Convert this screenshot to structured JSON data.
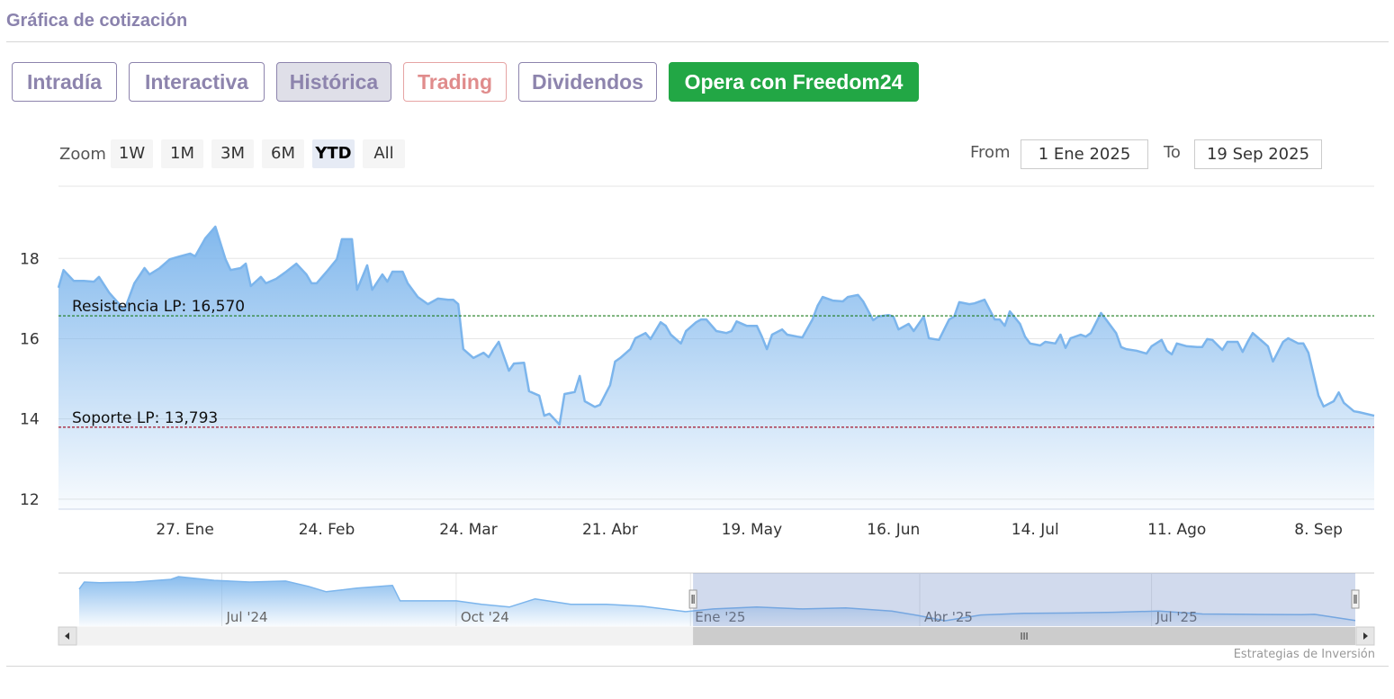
{
  "header": {
    "title": "Gráfica de cotización"
  },
  "tabs": [
    {
      "label": "Intradía"
    },
    {
      "label": "Interactiva"
    },
    {
      "label": "Histórica",
      "active": true
    },
    {
      "label": "Trading"
    },
    {
      "label": "Dividendos"
    },
    {
      "label": "Opera con Freedom24"
    }
  ],
  "zoom": {
    "label": "Zoom",
    "buttons": [
      {
        "label": "1W"
      },
      {
        "label": "1M"
      },
      {
        "label": "3M"
      },
      {
        "label": "6M"
      },
      {
        "label": "YTD",
        "active": true
      },
      {
        "label": "All"
      }
    ]
  },
  "range": {
    "from_label": "From",
    "from": "1 Ene 2025",
    "to_label": "To",
    "to": "19 Sep 2025"
  },
  "chart_data": {
    "type": "area",
    "color": "#7cb5ec",
    "x": [
      "2025-01-02",
      "2025-01-03",
      "2025-01-05",
      "2025-01-07",
      "2025-01-09",
      "2025-01-10",
      "2025-01-12",
      "2025-01-14",
      "2025-01-15",
      "2025-01-17",
      "2025-01-19",
      "2025-01-20",
      "2025-01-22",
      "2025-01-24",
      "2025-01-26",
      "2025-01-28",
      "2025-01-29",
      "2025-01-31",
      "2025-02-02",
      "2025-02-04",
      "2025-02-05",
      "2025-02-07",
      "2025-02-08",
      "2025-02-09",
      "2025-02-11",
      "2025-02-12",
      "2025-02-14",
      "2025-02-16",
      "2025-02-18",
      "2025-02-20",
      "2025-02-21",
      "2025-02-22",
      "2025-02-24",
      "2025-02-26",
      "2025-02-27",
      "2025-03-01",
      "2025-03-02",
      "2025-03-04",
      "2025-03-05",
      "2025-03-07",
      "2025-03-08",
      "2025-03-09",
      "2025-03-11",
      "2025-03-12",
      "2025-03-14",
      "2025-03-16",
      "2025-03-18",
      "2025-03-20",
      "2025-03-21",
      "2025-03-22",
      "2025-03-23",
      "2025-03-25",
      "2025-03-27",
      "2025-03-28",
      "2025-03-29",
      "2025-03-30",
      "2025-04-01",
      "2025-04-02",
      "2025-04-04",
      "2025-04-05",
      "2025-04-07",
      "2025-04-08",
      "2025-04-09",
      "2025-04-11",
      "2025-04-12",
      "2025-04-14",
      "2025-04-15",
      "2025-04-16",
      "2025-04-18",
      "2025-04-19",
      "2025-04-21",
      "2025-04-22",
      "2025-04-23",
      "2025-04-25",
      "2025-04-26",
      "2025-04-28",
      "2025-04-29",
      "2025-05-01",
      "2025-05-02",
      "2025-05-03",
      "2025-05-05",
      "2025-05-06",
      "2025-05-08",
      "2025-05-09",
      "2025-05-10",
      "2025-05-12",
      "2025-05-14",
      "2025-05-15",
      "2025-05-16",
      "2025-05-18",
      "2025-05-20",
      "2025-05-21",
      "2025-05-22",
      "2025-05-23",
      "2025-05-25",
      "2025-05-26",
      "2025-05-28",
      "2025-05-29",
      "2025-05-31",
      "2025-06-01",
      "2025-06-02",
      "2025-06-04",
      "2025-06-06",
      "2025-06-07",
      "2025-06-09",
      "2025-06-10",
      "2025-06-12",
      "2025-06-13",
      "2025-06-15",
      "2025-06-16",
      "2025-06-17",
      "2025-06-19",
      "2025-06-20",
      "2025-06-22",
      "2025-06-23",
      "2025-06-25",
      "2025-06-27",
      "2025-06-28",
      "2025-06-29",
      "2025-07-01",
      "2025-07-02",
      "2025-07-04",
      "2025-07-06",
      "2025-07-07",
      "2025-07-08",
      "2025-07-09",
      "2025-07-11",
      "2025-07-12",
      "2025-07-13",
      "2025-07-15",
      "2025-07-16",
      "2025-07-18",
      "2025-07-19",
      "2025-07-20",
      "2025-07-21",
      "2025-07-23",
      "2025-07-24",
      "2025-07-25",
      "2025-07-27",
      "2025-07-28",
      "2025-07-30",
      "2025-07-31",
      "2025-08-01",
      "2025-08-03",
      "2025-08-05",
      "2025-08-06",
      "2025-08-08",
      "2025-08-09",
      "2025-08-10",
      "2025-08-11",
      "2025-08-13",
      "2025-08-15",
      "2025-08-16",
      "2025-08-17",
      "2025-08-18",
      "2025-08-20",
      "2025-08-21",
      "2025-08-23",
      "2025-08-24",
      "2025-08-25",
      "2025-08-26",
      "2025-08-28",
      "2025-08-29",
      "2025-08-30",
      "2025-09-01",
      "2025-09-02",
      "2025-09-04",
      "2025-09-05",
      "2025-09-06",
      "2025-09-08",
      "2025-09-09",
      "2025-09-11",
      "2025-09-12",
      "2025-09-13",
      "2025-09-15",
      "2025-09-16",
      "2025-09-19"
    ],
    "values": [
      17.27,
      17.71,
      17.44,
      17.44,
      17.42,
      17.54,
      17.15,
      16.86,
      16.7,
      17.38,
      17.76,
      17.6,
      17.76,
      17.98,
      18.05,
      18.12,
      18.05,
      18.5,
      18.79,
      17.98,
      17.71,
      17.76,
      17.87,
      17.31,
      17.54,
      17.38,
      17.49,
      17.67,
      17.87,
      17.6,
      17.38,
      17.38,
      17.67,
      17.98,
      18.48,
      18.48,
      17.22,
      17.83,
      17.22,
      17.6,
      17.42,
      17.67,
      17.67,
      17.38,
      17.04,
      16.86,
      17.0,
      16.97,
      16.97,
      16.86,
      15.74,
      15.52,
      15.65,
      15.54,
      15.74,
      15.92,
      15.2,
      15.38,
      15.4,
      14.69,
      14.58,
      14.08,
      14.13,
      13.86,
      14.62,
      14.67,
      15.07,
      14.44,
      14.3,
      14.35,
      14.84,
      15.43,
      15.52,
      15.74,
      16.01,
      16.14,
      15.99,
      16.41,
      16.32,
      16.1,
      15.88,
      16.19,
      16.41,
      16.48,
      16.48,
      16.19,
      16.14,
      16.19,
      16.43,
      16.32,
      16.32,
      16.05,
      15.74,
      16.1,
      16.23,
      16.1,
      16.05,
      16.03,
      16.48,
      16.82,
      17.04,
      16.95,
      16.93,
      17.04,
      17.09,
      16.93,
      16.46,
      16.55,
      16.59,
      16.55,
      16.23,
      16.37,
      16.19,
      16.55,
      16.01,
      15.97,
      16.48,
      16.55,
      16.91,
      16.86,
      16.88,
      16.97,
      16.48,
      16.48,
      16.32,
      16.68,
      16.37,
      16.05,
      15.88,
      15.83,
      15.92,
      15.88,
      16.1,
      15.77,
      16.01,
      16.1,
      16.05,
      16.14,
      16.64,
      16.48,
      16.14,
      15.79,
      15.74,
      15.7,
      15.63,
      15.81,
      15.97,
      15.7,
      15.61,
      15.88,
      15.81,
      15.79,
      15.79,
      15.99,
      15.97,
      15.72,
      15.92,
      15.92,
      15.67,
      15.92,
      16.14,
      15.92,
      15.81,
      15.43,
      15.92,
      16.01,
      15.88,
      15.88,
      15.65,
      14.58,
      14.31,
      14.44,
      14.66,
      14.4,
      14.19,
      14.17,
      14.08
    ],
    "xlim": [
      "2025-01-02",
      "2025-09-19"
    ],
    "xticks": [
      {
        "value": "2025-01-27",
        "label": "27. Ene"
      },
      {
        "value": "2025-02-24",
        "label": "24. Feb"
      },
      {
        "value": "2025-03-24",
        "label": "24. Mar"
      },
      {
        "value": "2025-04-21",
        "label": "21. Abr"
      },
      {
        "value": "2025-05-19",
        "label": "19. May"
      },
      {
        "value": "2025-06-16",
        "label": "16. Jun"
      },
      {
        "value": "2025-07-14",
        "label": "14. Jul"
      },
      {
        "value": "2025-08-11",
        "label": "11. Ago"
      },
      {
        "value": "2025-09-08",
        "label": "8. Sep"
      }
    ],
    "ylim": [
      11.75,
      19.8
    ],
    "yticks": [
      12,
      14,
      16,
      18
    ],
    "grid": true,
    "plot_lines": [
      {
        "value": 16.57,
        "label": "Resistencia LP: 16,570",
        "color": "#1c7c1c"
      },
      {
        "value": 13.793,
        "label": "Soporte LP: 13,793",
        "color": "#a3142a"
      }
    ]
  },
  "navigator": {
    "type": "area",
    "color": "#7cb5ec",
    "x": [
      "2024-05-06",
      "2024-05-08",
      "2024-05-14",
      "2024-05-28",
      "2024-06-11",
      "2024-06-14",
      "2024-06-28",
      "2024-07-12",
      "2024-07-26",
      "2024-08-04",
      "2024-08-11",
      "2024-08-23",
      "2024-09-06",
      "2024-09-09",
      "2024-09-20",
      "2024-10-01",
      "2024-10-11",
      "2024-10-22",
      "2024-11-01",
      "2024-11-15",
      "2024-11-29",
      "2024-12-13",
      "2024-12-30",
      "2025-01-10",
      "2025-01-27",
      "2025-02-14",
      "2025-03-03",
      "2025-03-21",
      "2025-03-31",
      "2025-04-11",
      "2025-04-25",
      "2025-05-12",
      "2025-05-30",
      "2025-06-16",
      "2025-07-04",
      "2025-07-21",
      "2025-08-08",
      "2025-08-29",
      "2025-09-03",
      "2025-09-19"
    ],
    "values": [
      23.4,
      25.5,
      25.3,
      25.5,
      26.3,
      27.1,
      26.0,
      25.5,
      25.8,
      24.2,
      22.6,
      23.7,
      24.5,
      19.9,
      19.9,
      19.9,
      18.9,
      18.1,
      20.5,
      18.9,
      18.9,
      18.3,
      16.7,
      17.5,
      18.1,
      17.5,
      17.8,
      16.9,
      15.6,
      14.0,
      15.7,
      16.2,
      16.3,
      16.5,
      16.9,
      16.0,
      15.9,
      15.8,
      15.9,
      14.08
    ],
    "xlim": [
      "2024-05-06",
      "2025-09-19"
    ],
    "xticks": [
      {
        "value": "2024-07-01",
        "label": "Jul '24"
      },
      {
        "value": "2024-10-01",
        "label": "Oct '24"
      },
      {
        "value": "2025-01-01",
        "label": "Ene '25"
      },
      {
        "value": "2025-04-01",
        "label": "Abr '25"
      },
      {
        "value": "2025-07-01",
        "label": "Jul '25"
      }
    ]
  },
  "footer": {
    "credit": "Estrategias de Inversión"
  }
}
